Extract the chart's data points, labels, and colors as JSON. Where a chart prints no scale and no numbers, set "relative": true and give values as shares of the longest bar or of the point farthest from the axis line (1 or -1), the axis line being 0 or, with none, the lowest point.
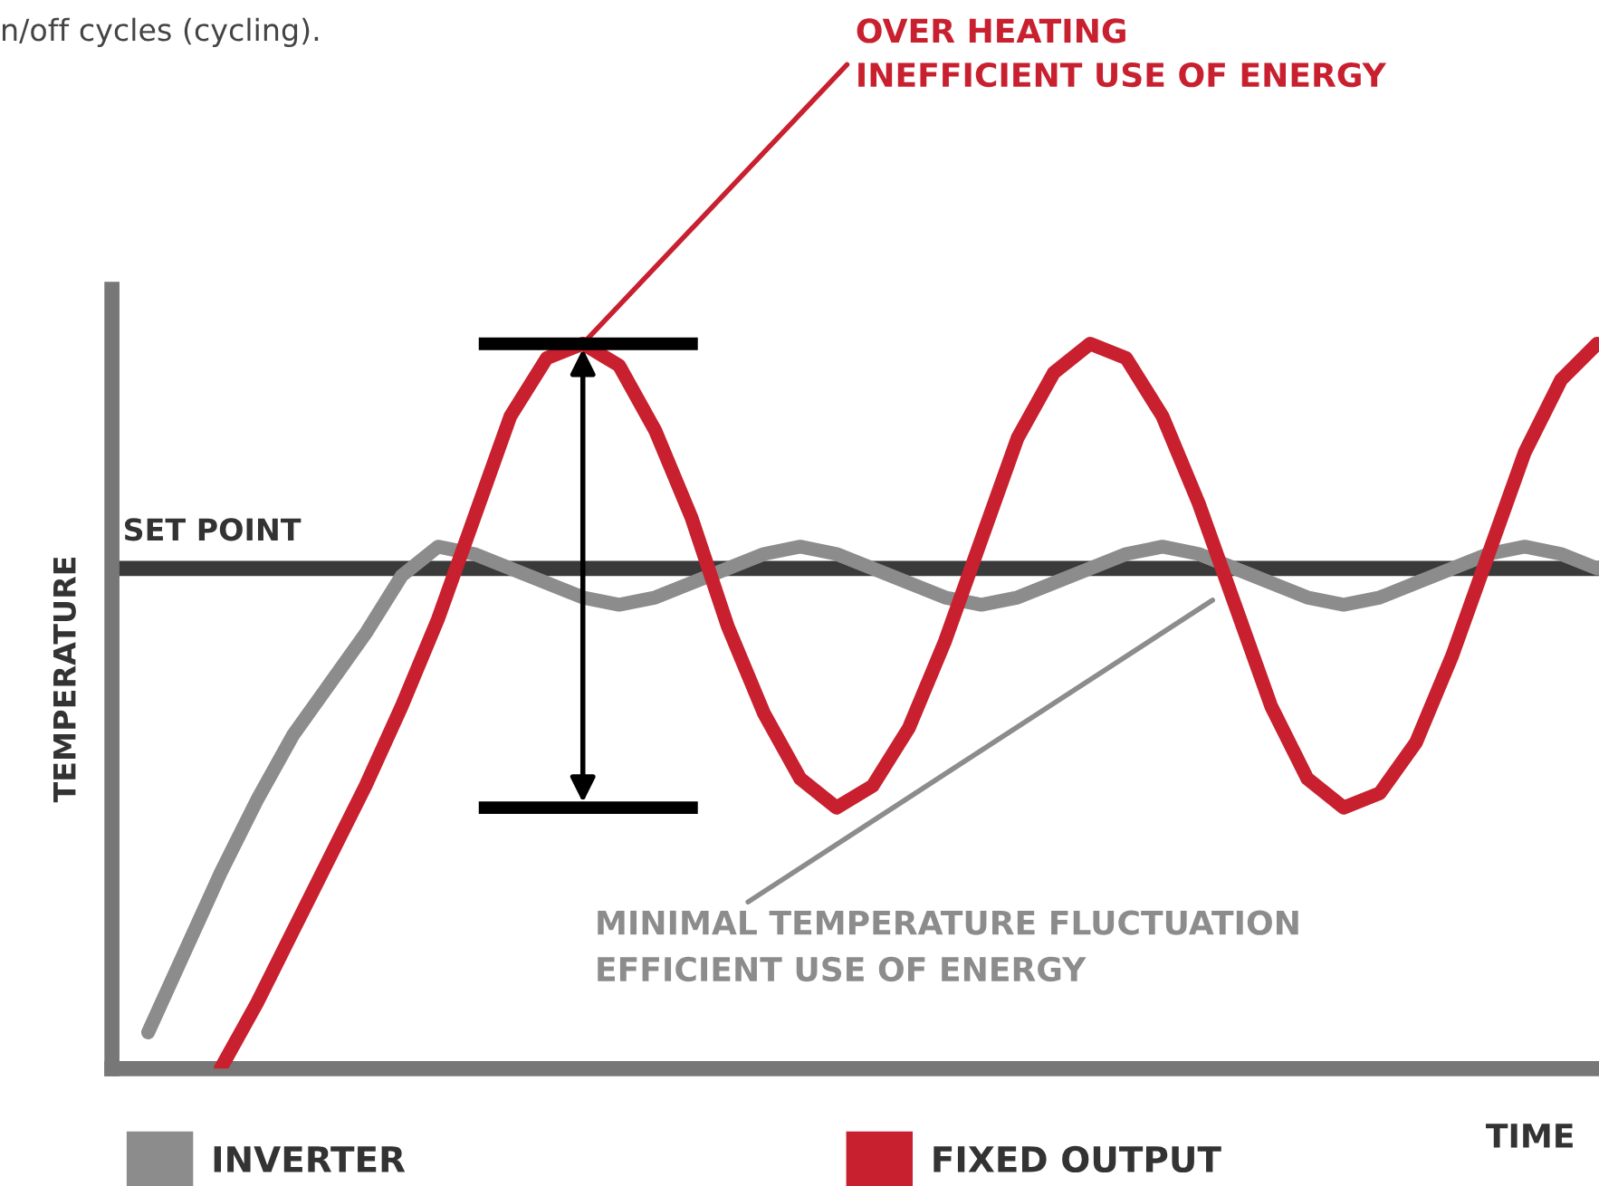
{
  "chart_data": {
    "type": "line",
    "relative": true,
    "xlabel": "TIME",
    "ylabel": "TEMPERATURE",
    "legend": "bottom",
    "grid": false,
    "marker": "none",
    "line_style": "solid",
    "categories": [
      null,
      null,
      null,
      null,
      null,
      null,
      null,
      null,
      null,
      null,
      null,
      null,
      null,
      null,
      null,
      null,
      null,
      null,
      null,
      null,
      null,
      null,
      null,
      null,
      null,
      null,
      null,
      null,
      null,
      null,
      null,
      null,
      null,
      null,
      null,
      null,
      null,
      null,
      null,
      null,
      null,
      null
    ],
    "series": [
      {
        "name": "INVERTER",
        "color": "#8c8c8c",
        "values": [
          null,
          0.05,
          0.16,
          0.27,
          0.37,
          0.46,
          0.53,
          0.6,
          0.68,
          0.72,
          0.71,
          0.69,
          0.67,
          0.65,
          0.64,
          0.65,
          0.67,
          0.69,
          0.71,
          0.72,
          0.71,
          0.69,
          0.67,
          0.65,
          0.64,
          0.65,
          0.67,
          0.69,
          0.71,
          0.72,
          0.71,
          0.69,
          0.67,
          0.65,
          0.64,
          0.65,
          0.67,
          0.69,
          0.71,
          0.72,
          0.71,
          0.69
        ]
      },
      {
        "name": "FIXED OUTPUT",
        "color": "#c8202f",
        "values": [
          null,
          null,
          null,
          0,
          0.09,
          0.19,
          0.29,
          0.39,
          0.5,
          0.62,
          0.76,
          0.9,
          0.98,
          1.0,
          0.97,
          0.88,
          0.76,
          0.61,
          0.49,
          0.4,
          0.36,
          0.39,
          0.47,
          0.59,
          0.73,
          0.87,
          0.96,
          1.0,
          0.98,
          0.9,
          0.78,
          0.64,
          0.5,
          0.4,
          0.36,
          0.38,
          0.45,
          0.57,
          0.71,
          0.85,
          0.95,
          1.0
        ]
      }
    ],
    "ref_lines": [
      {
        "axis": "y",
        "value": 0.69,
        "label": "SET POINT",
        "color": "#3a3a3a"
      }
    ],
    "annotations": [
      "n/off cycles (cycling).",
      "OVER HEATING\nINEFFICIENT USE OF ENERGY",
      "MINIMAL TEMPERATURE FLUCTUATION\nEFFICIENT USE OF ENERGY"
    ]
  }
}
